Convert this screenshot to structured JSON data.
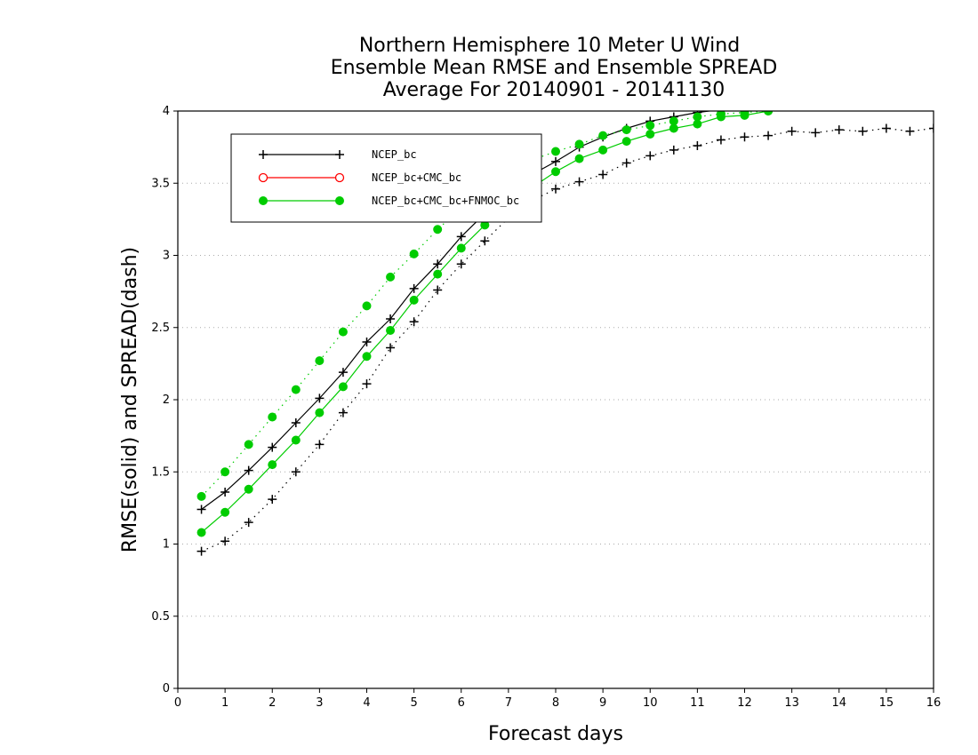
{
  "chart_data": {
    "type": "line",
    "title_lines": [
      "Northern Hemisphere 10 Meter U Wind",
      "Ensemble Mean RMSE and Ensemble SPREAD",
      "Average For 20140901 - 20141130"
    ],
    "xlabel": "Forecast days",
    "ylabel": "RMSE(solid) and SPREAD(dash)",
    "xlim": [
      0,
      16
    ],
    "ylim": [
      0,
      4
    ],
    "x_ticks": [
      "0",
      "1",
      "2",
      "3",
      "4",
      "5",
      "6",
      "7",
      "8",
      "9",
      "10",
      "11",
      "12",
      "13",
      "14",
      "15",
      "16"
    ],
    "y_ticks": [
      "0",
      "0.5",
      "1",
      "1.5",
      "2",
      "2.5",
      "3",
      "3.5",
      "4"
    ],
    "grid": "horizontal dotted",
    "legend_position": "top-left",
    "legend": [
      "NCEP_bc",
      "NCEP_bc+CMC_bc",
      "NCEP_bc+CMC_bc+FNMOC_bc"
    ],
    "series": [
      {
        "name": "NCEP_bc",
        "metric": "RMSE",
        "style": "solid",
        "marker": "plus",
        "color": "#000000",
        "x": [
          0.5,
          1,
          1.5,
          2,
          2.5,
          3,
          3.5,
          4,
          4.5,
          5,
          5.5,
          6,
          6.5,
          7,
          7.5,
          8,
          8.5,
          9,
          9.5,
          10,
          10.5,
          11,
          11.5,
          12,
          12.5,
          13
        ],
        "values": [
          1.24,
          1.36,
          1.51,
          1.67,
          1.84,
          2.01,
          2.19,
          2.4,
          2.56,
          2.77,
          2.94,
          3.13,
          3.29,
          3.44,
          3.56,
          3.65,
          3.75,
          3.82,
          3.88,
          3.93,
          3.96,
          3.99,
          4.01,
          4.03,
          4.04,
          4.05
        ]
      },
      {
        "name": "NCEP_bc",
        "metric": "SPREAD",
        "style": "dash",
        "marker": "plus",
        "color": "#000000",
        "x": [
          0.5,
          1,
          1.5,
          2,
          2.5,
          3,
          3.5,
          4,
          4.5,
          5,
          5.5,
          6,
          6.5,
          7,
          7.5,
          8,
          8.5,
          9,
          9.5,
          10,
          10.5,
          11,
          11.5,
          12,
          12.5,
          13,
          13.5,
          14,
          14.5,
          15,
          15.5,
          16
        ],
        "values": [
          0.95,
          1.02,
          1.15,
          1.31,
          1.5,
          1.69,
          1.91,
          2.11,
          2.36,
          2.54,
          2.76,
          2.94,
          3.1,
          3.26,
          3.38,
          3.46,
          3.51,
          3.56,
          3.64,
          3.69,
          3.73,
          3.76,
          3.8,
          3.82,
          3.83,
          3.86,
          3.85,
          3.87,
          3.86,
          3.88,
          3.86,
          3.88
        ]
      },
      {
        "name": "NCEP_bc+CMC_bc",
        "metric": "RMSE",
        "style": "solid",
        "marker": "open-circle",
        "color": "#ff0000",
        "x": [],
        "values": []
      },
      {
        "name": "NCEP_bc+CMC_bc+FNMOC_bc",
        "metric": "RMSE",
        "style": "solid",
        "marker": "filled-circle",
        "color": "#00cc00",
        "x": [
          0.5,
          1,
          1.5,
          2,
          2.5,
          3,
          3.5,
          4,
          4.5,
          5,
          5.5,
          6,
          6.5,
          7,
          7.5,
          8,
          8.5,
          9,
          9.5,
          10,
          10.5,
          11,
          11.5,
          12,
          12.5
        ],
        "values": [
          1.08,
          1.22,
          1.38,
          1.55,
          1.72,
          1.91,
          2.09,
          2.3,
          2.48,
          2.69,
          2.87,
          3.05,
          3.21,
          3.35,
          3.47,
          3.58,
          3.67,
          3.73,
          3.79,
          3.84,
          3.88,
          3.91,
          3.96,
          3.97,
          4.0
        ]
      },
      {
        "name": "NCEP_bc+CMC_bc+FNMOC_bc",
        "metric": "SPREAD",
        "style": "dash",
        "marker": "filled-circle",
        "color": "#00cc00",
        "x": [
          0.5,
          1,
          1.5,
          2,
          2.5,
          3,
          3.5,
          4,
          4.5,
          5,
          5.5,
          6,
          6.5,
          7,
          7.5,
          8,
          8.5,
          9,
          9.5,
          10,
          10.5,
          11,
          11.5,
          12,
          12.5
        ],
        "values": [
          1.33,
          1.5,
          1.69,
          1.88,
          2.07,
          2.27,
          2.47,
          2.65,
          2.85,
          3.01,
          3.18,
          3.33,
          3.46,
          3.58,
          3.66,
          3.72,
          3.77,
          3.83,
          3.87,
          3.9,
          3.93,
          3.96,
          3.98,
          3.99,
          4.0
        ]
      }
    ]
  }
}
